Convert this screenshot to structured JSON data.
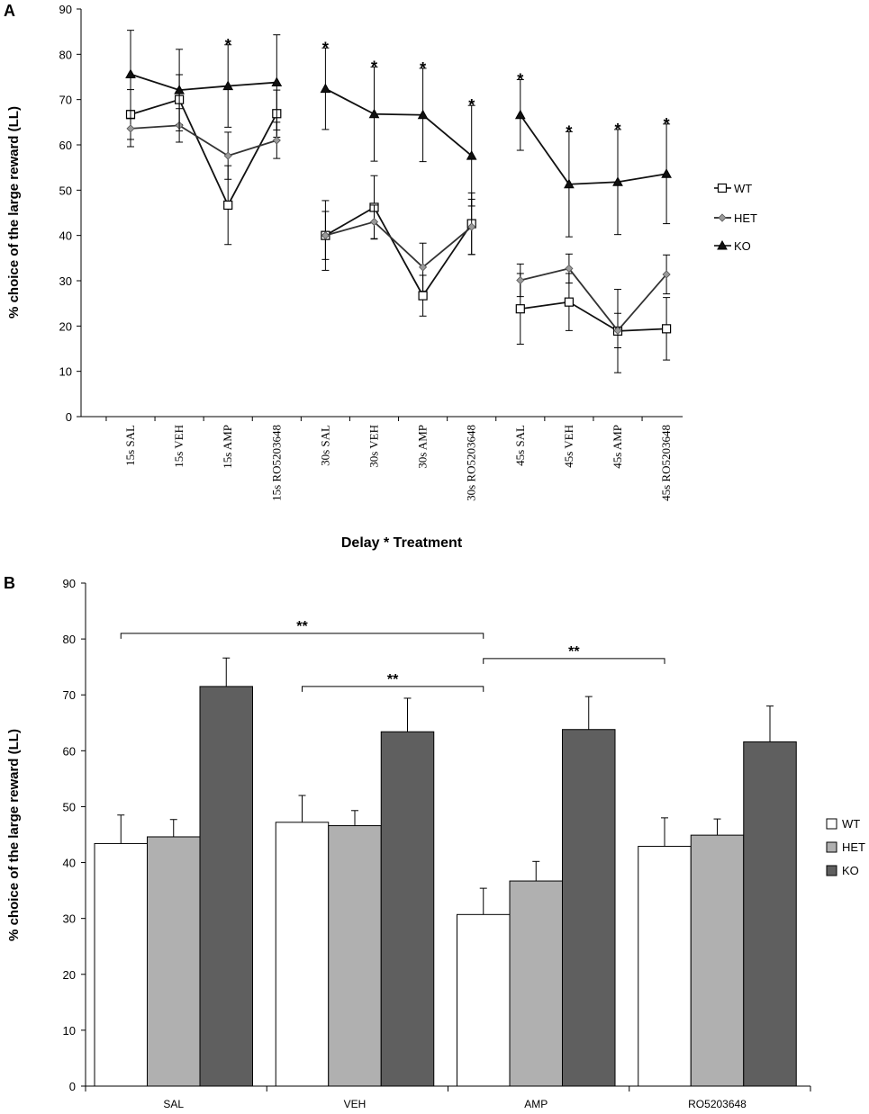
{
  "chart_data": [
    {
      "panel": "A",
      "type": "line",
      "title": "",
      "xlabel": "Delay  *  Treatment",
      "ylabel": "% choice of the large reward (LL)",
      "ylim": [
        0,
        90
      ],
      "yticks": [
        0,
        10,
        20,
        30,
        40,
        50,
        60,
        70,
        80,
        90
      ],
      "categories": [
        "15s SAL",
        "15s VEH",
        "15s AMP",
        "15s RO5203648",
        "30s SAL",
        "30s VEH",
        "30s AMP",
        "30s RO5203648",
        "45s SAL",
        "45s VEH",
        "45s AMP",
        "45s RO5203648"
      ],
      "segments": [
        [
          0,
          3
        ],
        [
          4,
          7
        ],
        [
          8,
          11
        ]
      ],
      "legend_position": "right",
      "series": [
        {
          "name": "WT",
          "marker": "open-square",
          "values": [
            66.7,
            70,
            46.7,
            66.9,
            40,
            46.2,
            26.7,
            42.6,
            23.8,
            25.3,
            18.9,
            19.4
          ],
          "errors": [
            5.5,
            5.5,
            8.7,
            5.2,
            7.7,
            7.0,
            4.5,
            6.8,
            7.8,
            6.3,
            9.2,
            6.9
          ]
        },
        {
          "name": "HET",
          "marker": "gray-diamond",
          "values": [
            63.6,
            64.3,
            57.6,
            61.0,
            40,
            43,
            33.0,
            41.9,
            30.1,
            32.7,
            19.0,
            31.4
          ],
          "errors": [
            4.0,
            3.7,
            5.2,
            4.0,
            5.3,
            3.7,
            5.3,
            6.1,
            3.6,
            3.2,
            3.8,
            4.3
          ]
        },
        {
          "name": "KO",
          "marker": "filled-triangle",
          "values": [
            75.6,
            72.1,
            73.0,
            73.8,
            72.4,
            66.8,
            66.6,
            57.6,
            66.6,
            51.3,
            51.8,
            53.6
          ],
          "errors": [
            9.7,
            9.0,
            9.1,
            10.5,
            9.0,
            10.4,
            10.3,
            11.1,
            7.8,
            11.6,
            11.6,
            11.0
          ]
        }
      ],
      "annotations": [
        {
          "category": "15s AMP",
          "text": "*"
        },
        {
          "category": "30s SAL",
          "text": "*"
        },
        {
          "category": "30s VEH",
          "text": "*"
        },
        {
          "category": "30s AMP",
          "text": "*"
        },
        {
          "category": "30s RO5203648",
          "text": "*"
        },
        {
          "category": "45s SAL",
          "text": "*"
        },
        {
          "category": "45s VEH",
          "text": "*"
        },
        {
          "category": "45s AMP",
          "text": "*"
        },
        {
          "category": "45s RO5203648",
          "text": "*"
        }
      ]
    },
    {
      "panel": "B",
      "type": "bar",
      "title": "",
      "xlabel": "",
      "ylabel": "% choice of the large reward (LL)",
      "ylim": [
        0,
        90
      ],
      "yticks": [
        0,
        10,
        20,
        30,
        40,
        50,
        60,
        70,
        80,
        90
      ],
      "categories": [
        "SAL",
        "VEH",
        "AMP",
        "RO5203648"
      ],
      "legend_position": "right",
      "series": [
        {
          "name": "WT",
          "color": "#ffffff",
          "values": [
            43.4,
            47.2,
            30.7,
            42.9
          ],
          "errors": [
            5.1,
            4.8,
            4.7,
            5.1
          ]
        },
        {
          "name": "HET",
          "color": "#b0b0b0",
          "values": [
            44.6,
            46.6,
            36.7,
            44.9
          ],
          "errors": [
            3.1,
            2.7,
            3.5,
            2.9
          ]
        },
        {
          "name": "KO",
          "color": "#5f5f5f",
          "values": [
            71.5,
            63.4,
            63.8,
            61.6
          ],
          "errors": [
            5.1,
            6.0,
            5.9,
            6.4
          ]
        }
      ],
      "significance": [
        {
          "from": "SAL",
          "to": "AMP",
          "y": 81,
          "text": "**"
        },
        {
          "from": "VEH",
          "to": "AMP",
          "y": 71.5,
          "text": "**"
        },
        {
          "from": "AMP",
          "to": "RO5203648",
          "y": 76.5,
          "text": "**"
        }
      ]
    }
  ]
}
